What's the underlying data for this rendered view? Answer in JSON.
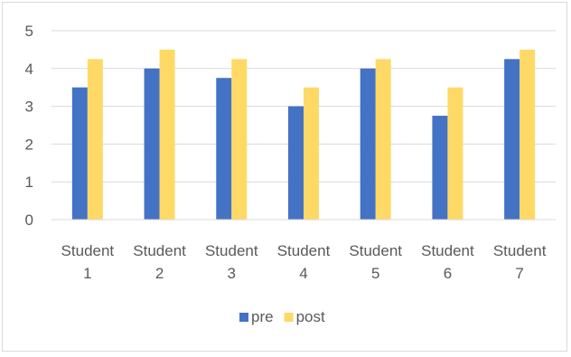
{
  "chart_data": {
    "type": "bar",
    "categories": [
      [
        "Student",
        "1"
      ],
      [
        "Student",
        "2"
      ],
      [
        "Student",
        "3"
      ],
      [
        "Student",
        "4"
      ],
      [
        "Student",
        "5"
      ],
      [
        "Student",
        "6"
      ],
      [
        "Student",
        "7"
      ]
    ],
    "series": [
      {
        "name": "pre",
        "color": "#4472c4",
        "values": [
          3.5,
          4,
          3.75,
          3,
          4,
          2.75,
          4.25
        ]
      },
      {
        "name": "post",
        "color": "#ffd966",
        "values": [
          4.25,
          4.5,
          4.25,
          3.5,
          4.25,
          3.5,
          4.5
        ]
      }
    ],
    "title": "",
    "xlabel": "",
    "ylabel": "",
    "ylim": [
      0,
      5
    ],
    "yticks": [
      "0",
      "1",
      "2",
      "3",
      "4",
      "5"
    ],
    "grid": true,
    "legend_position": "bottom",
    "gridline_color": "#d9d9d9",
    "axis_line_color": "#d9d9d9"
  }
}
